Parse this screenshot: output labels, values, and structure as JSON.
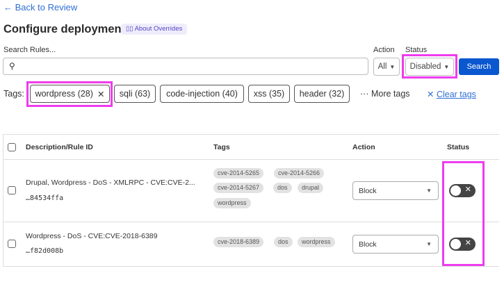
{
  "nav": {
    "back_label": "← Back to Review"
  },
  "header": {
    "title": "Configure deployment",
    "about_label": "About Overrides",
    "about_icon": "book-icon"
  },
  "search": {
    "label": "Search Rules...",
    "value": "",
    "placeholder": ""
  },
  "filters": {
    "action_label": "Action",
    "action_value": "All",
    "status_label": "Status",
    "status_value": "Disabled",
    "search_button": "Search"
  },
  "tags": {
    "label": "Tags:",
    "chips": [
      {
        "label": "wordpress (28)",
        "selected": true
      },
      {
        "label": "sqli (63)"
      },
      {
        "label": "code-injection (40)"
      },
      {
        "label": "xss (35)"
      },
      {
        "label": "header (32)"
      }
    ],
    "more_label": "More tags",
    "clear_label": "Clear tags"
  },
  "table": {
    "headers": [
      "Description/Rule ID",
      "Tags",
      "Action",
      "Status"
    ],
    "rows": [
      {
        "description": "Drupal, Wordpress - DoS - XMLRPC - CVE:CVE-2...",
        "rule_id": "…84534ffa",
        "tags": [
          "cve-2014-5265",
          "cve-2014-5266",
          "cve-2014-5267",
          "dos",
          "drupal",
          "wordpress"
        ],
        "action": "Block",
        "enabled": false
      },
      {
        "description": "Wordpress - DoS - CVE:CVE-2018-6389",
        "rule_id": "…f82d008b",
        "tags": [
          "cve-2018-6389",
          "dos",
          "wordpress"
        ],
        "action": "Block",
        "enabled": false
      }
    ]
  },
  "colors": {
    "accent": "#0b57d0",
    "highlight": "#ee3cee",
    "link": "#2f6fd6"
  }
}
